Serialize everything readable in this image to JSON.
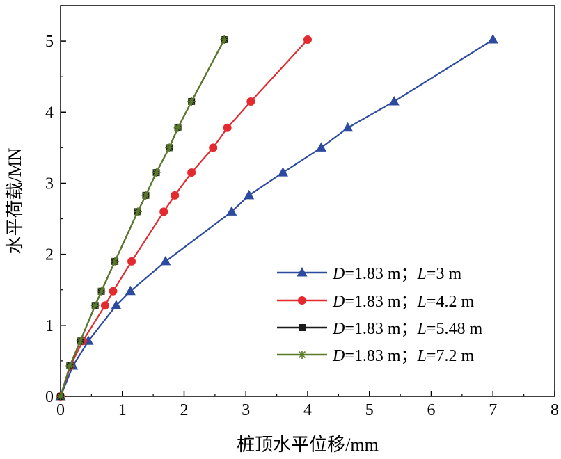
{
  "chart_data": {
    "type": "line",
    "xlabel": "桩顶水平位移/mm",
    "ylabel": "水平荷载/MN",
    "xlim": [
      0,
      8
    ],
    "ylim": [
      0,
      5.5
    ],
    "xticks": [
      "0",
      "1",
      "2",
      "3",
      "4",
      "5",
      "6",
      "7",
      "8"
    ],
    "yticks": [
      "0",
      "1",
      "2",
      "3",
      "4",
      "5"
    ],
    "grid": false,
    "legend_position": "bottom-right",
    "series": [
      {
        "name": "D=1.83 m；L=3 m",
        "legend": {
          "d_italic": "D",
          "d_text": "=1.83 m；",
          "l_italic": "L",
          "l_text": "=3 m"
        },
        "color": "#2c4aa0",
        "marker": "triangle",
        "x": [
          0,
          0.2,
          0.45,
          0.9,
          1.13,
          1.7,
          2.77,
          3.05,
          3.6,
          4.22,
          4.65,
          5.4,
          7.0
        ],
        "y": [
          0,
          0.43,
          0.78,
          1.28,
          1.48,
          1.9,
          2.6,
          2.83,
          3.15,
          3.5,
          3.78,
          4.15,
          5.02
        ]
      },
      {
        "name": "D=1.83 m；L=4.2 m",
        "legend": {
          "d_italic": "D",
          "d_text": "=1.83 m；",
          "l_italic": "L",
          "l_text": "=4.2 m"
        },
        "color": "#e32a2f",
        "marker": "circle",
        "x": [
          0,
          0.16,
          0.36,
          0.72,
          0.85,
          1.15,
          1.67,
          1.85,
          2.12,
          2.47,
          2.7,
          3.08,
          4.0
        ],
        "y": [
          0,
          0.43,
          0.78,
          1.28,
          1.48,
          1.9,
          2.6,
          2.83,
          3.15,
          3.5,
          3.78,
          4.15,
          5.02
        ]
      },
      {
        "name": "D=1.83 m；L=5.48 m",
        "legend": {
          "d_italic": "D",
          "d_text": "=1.83 m；",
          "l_italic": "L",
          "l_text": "=5.48 m"
        },
        "color": "#1a1a1a",
        "marker": "square",
        "x": [
          0,
          0.15,
          0.32,
          0.56,
          0.66,
          0.88,
          1.25,
          1.38,
          1.55,
          1.76,
          1.9,
          2.12,
          2.65
        ],
        "y": [
          0,
          0.43,
          0.78,
          1.28,
          1.48,
          1.9,
          2.6,
          2.83,
          3.15,
          3.5,
          3.78,
          4.15,
          5.02
        ]
      },
      {
        "name": "D=1.83 m；L=7.2 m",
        "legend": {
          "d_italic": "D",
          "d_text": "=1.83 m；",
          "l_italic": "L",
          "l_text": "=7.2 m"
        },
        "color": "#5a7a2a",
        "marker": "asterisk",
        "x": [
          0,
          0.15,
          0.32,
          0.56,
          0.66,
          0.88,
          1.25,
          1.38,
          1.55,
          1.76,
          1.9,
          2.12,
          2.65
        ],
        "y": [
          0,
          0.43,
          0.78,
          1.28,
          1.48,
          1.9,
          2.6,
          2.83,
          3.15,
          3.5,
          3.78,
          4.15,
          5.02
        ]
      }
    ]
  }
}
